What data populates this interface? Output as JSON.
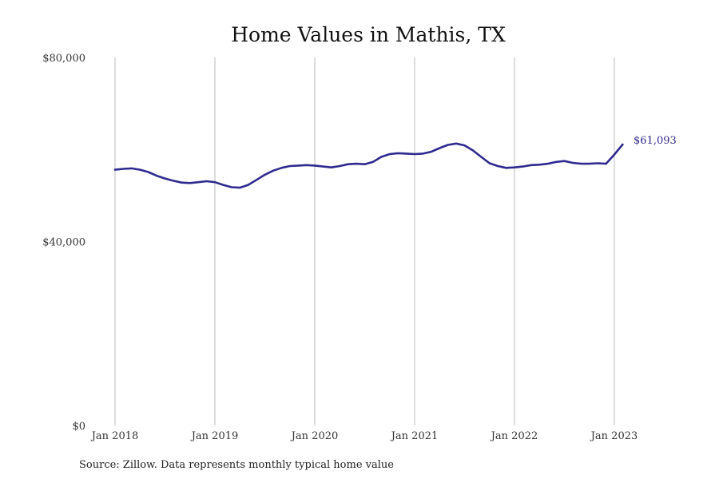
{
  "chart_data": {
    "type": "line",
    "title": "Home Values in Mathis, TX",
    "xlabel": "",
    "ylabel": "",
    "source": "Source: Zillow. Data represents monthly typical home value",
    "ylim": [
      0,
      80000
    ],
    "y_ticks": [
      {
        "value": 0,
        "label": "$0"
      },
      {
        "value": 40000,
        "label": "$40,000"
      },
      {
        "value": 80000,
        "label": "$80,000"
      }
    ],
    "x_ticks": [
      {
        "value": "2018-01",
        "label": "Jan 2018"
      },
      {
        "value": "2019-01",
        "label": "Jan 2019"
      },
      {
        "value": "2020-01",
        "label": "Jan 2020"
      },
      {
        "value": "2021-01",
        "label": "Jan 2021"
      },
      {
        "value": "2022-01",
        "label": "Jan 2022"
      },
      {
        "value": "2023-01",
        "label": "Jan 2023"
      }
    ],
    "grid": {
      "vertical": true,
      "horizontal": false
    },
    "line_color": "#2e2a8f",
    "gridline_color": "#bbbbbb",
    "end_label": "$61,093",
    "series": [
      {
        "x": [
          "2018-01",
          "2018-02",
          "2018-03",
          "2018-04",
          "2018-05",
          "2018-06",
          "2018-07",
          "2018-08",
          "2018-09",
          "2018-10",
          "2018-11",
          "2018-12",
          "2019-01",
          "2019-02",
          "2019-03",
          "2019-04",
          "2019-05",
          "2019-06",
          "2019-07",
          "2019-08",
          "2019-09",
          "2019-10",
          "2019-11",
          "2019-12",
          "2020-01",
          "2020-02",
          "2020-03",
          "2020-04",
          "2020-05",
          "2020-06",
          "2020-07",
          "2020-08",
          "2020-09",
          "2020-10",
          "2020-11",
          "2020-12",
          "2021-01",
          "2021-02",
          "2021-03",
          "2021-04",
          "2021-05",
          "2021-06",
          "2021-07",
          "2021-08",
          "2021-09",
          "2021-10",
          "2021-11",
          "2021-12",
          "2022-01",
          "2022-02",
          "2022-03",
          "2022-04",
          "2022-05",
          "2022-06",
          "2022-07",
          "2022-08",
          "2022-09",
          "2022-10",
          "2022-11",
          "2022-12",
          "2023-01",
          "2023-02"
        ],
        "values": [
          55600,
          55800,
          55900,
          55600,
          55100,
          54300,
          53700,
          53200,
          52800,
          52700,
          52900,
          53100,
          52900,
          52300,
          51800,
          51700,
          52300,
          53400,
          54500,
          55400,
          56000,
          56400,
          56500,
          56600,
          56500,
          56300,
          56100,
          56400,
          56800,
          56900,
          56800,
          57300,
          58400,
          59000,
          59200,
          59100,
          59000,
          59100,
          59500,
          60300,
          61000,
          61300,
          60900,
          59800,
          58400,
          57000,
          56400,
          56000,
          56100,
          56300,
          56600,
          56700,
          56900,
          57300,
          57500,
          57100,
          56900,
          56900,
          57000,
          56900,
          58900,
          61093
        ]
      }
    ]
  }
}
